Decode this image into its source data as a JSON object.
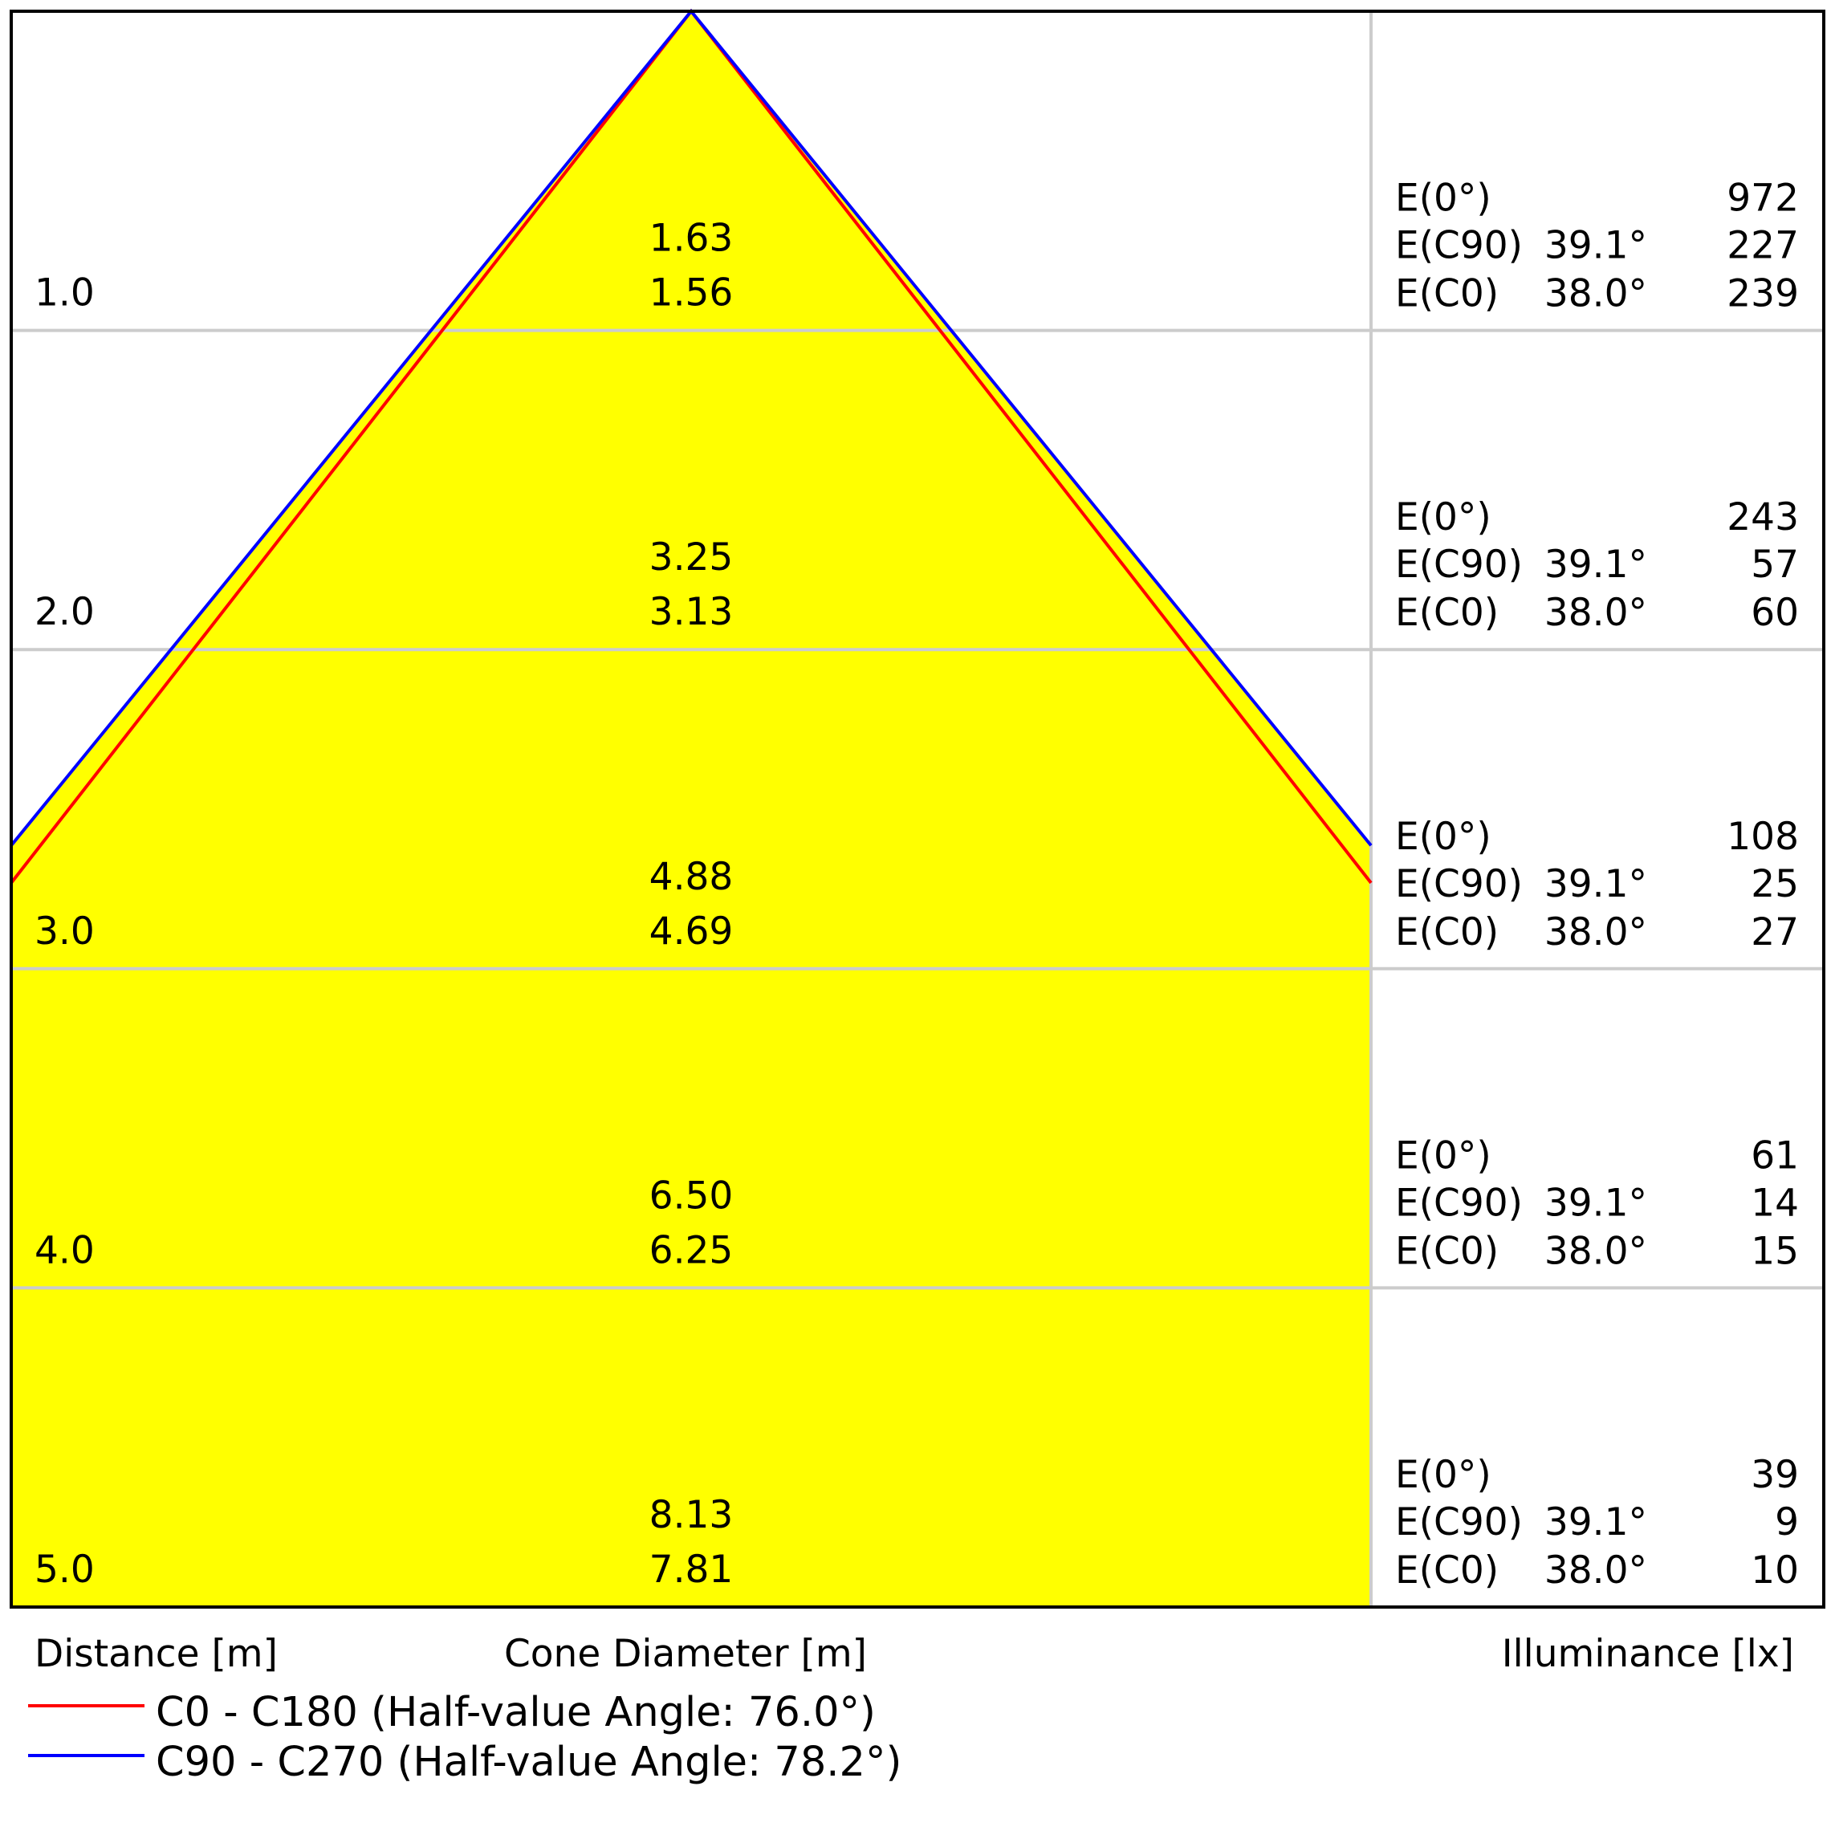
{
  "chart_data": {
    "type": "area",
    "title": "",
    "xlabel": "Cone Diameter [m]",
    "ylabel": "Distance [m]",
    "right_label": "Illuminance [lx]",
    "ylim": [
      0,
      5
    ],
    "grid": true,
    "distances": [
      1.0,
      2.0,
      3.0,
      4.0,
      5.0
    ],
    "distance_labels": [
      "1.0",
      "2.0",
      "3.0",
      "4.0",
      "5.0"
    ],
    "series": [
      {
        "name": "C0 - C180 (Half-value Angle: 76.0°)",
        "color": "#ff0000",
        "half_value_angle": 76.0,
        "diameters": [
          1.56,
          3.13,
          4.69,
          6.25,
          7.81
        ],
        "diameter_labels": [
          "1.56",
          "3.13",
          "4.69",
          "6.25",
          "7.81"
        ]
      },
      {
        "name": "C90 - C270 (Half-value Angle: 78.2°)",
        "color": "#0000ff",
        "half_value_angle": 78.2,
        "diameters": [
          1.63,
          3.25,
          4.88,
          6.5,
          8.13
        ],
        "diameter_labels": [
          "1.63",
          "3.25",
          "4.88",
          "6.50",
          "8.13"
        ]
      }
    ],
    "fill_color": "#ffff00",
    "illuminance": [
      {
        "E0": "972",
        "EC90": "227",
        "EC0": "239"
      },
      {
        "E0": "243",
        "EC90": "57",
        "EC0": "60"
      },
      {
        "E0": "108",
        "EC90": "25",
        "EC0": "27"
      },
      {
        "E0": "61",
        "EC90": "14",
        "EC0": "15"
      },
      {
        "E0": "39",
        "EC90": "9",
        "EC0": "10"
      }
    ],
    "row_labels": {
      "E0": "E(0°)",
      "EC90": "E(C90)",
      "EC0": "E(C0)"
    },
    "angle_labels": {
      "EC90": "39.1°",
      "EC0": "38.0°"
    }
  }
}
